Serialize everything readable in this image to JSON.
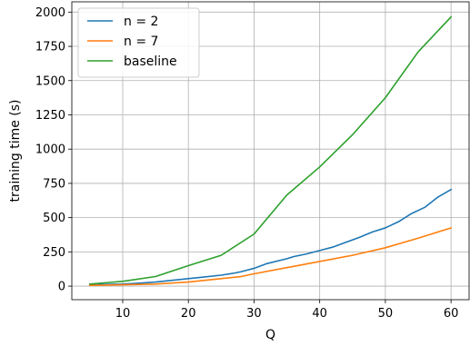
{
  "chart_data": {
    "type": "line",
    "title": "",
    "xlabel": "Q",
    "ylabel": "training time (s)",
    "xlim": [
      2.25,
      62.75
    ],
    "ylim": [
      -98.9,
      2075
    ],
    "xticks": [
      10,
      20,
      30,
      40,
      50,
      60
    ],
    "yticks": [
      0,
      250,
      500,
      750,
      1000,
      1250,
      1500,
      1750,
      2000
    ],
    "grid": true,
    "legend_position": "top-left",
    "series": [
      {
        "name": "n = 2",
        "color": "#1f77b4",
        "x": [
          5,
          10,
          12,
          15,
          18,
          20,
          22,
          25,
          27,
          28,
          30,
          32,
          35,
          36,
          38,
          40,
          42,
          44,
          46,
          48,
          50,
          52,
          54,
          56,
          58,
          60
        ],
        "y": [
          10,
          15,
          20,
          30,
          45,
          55,
          65,
          80,
          95,
          105,
          130,
          165,
          200,
          215,
          235,
          260,
          285,
          320,
          355,
          395,
          425,
          470,
          530,
          575,
          650,
          705
        ]
      },
      {
        "name": "n = 7",
        "color": "#ff7f0e",
        "x": [
          5,
          10,
          15,
          20,
          25,
          28,
          30,
          35,
          40,
          45,
          50,
          55,
          60
        ],
        "y": [
          5,
          10,
          15,
          30,
          55,
          70,
          90,
          135,
          180,
          225,
          280,
          350,
          425
        ]
      },
      {
        "name": "baseline",
        "color": "#2ca02c",
        "x": [
          5,
          10,
          15,
          20,
          25,
          30,
          35,
          40,
          45,
          50,
          55,
          60
        ],
        "y": [
          15,
          35,
          70,
          150,
          225,
          380,
          665,
          870,
          1105,
          1375,
          1710,
          1965
        ]
      }
    ]
  }
}
